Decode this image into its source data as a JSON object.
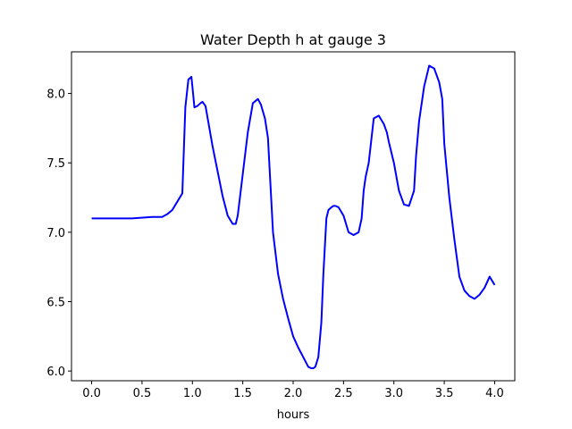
{
  "chart_data": {
    "type": "line",
    "title": "Water Depth h at gauge 3",
    "xlabel": "hours",
    "ylabel": "",
    "xlim": [
      -0.2,
      4.2
    ],
    "ylim": [
      5.93,
      8.3
    ],
    "xticks": [
      0.0,
      0.5,
      1.0,
      1.5,
      2.0,
      2.5,
      3.0,
      3.5,
      4.0
    ],
    "xtick_labels": [
      "0.0",
      "0.5",
      "1.0",
      "1.5",
      "2.0",
      "2.5",
      "3.0",
      "3.5",
      "4.0"
    ],
    "yticks": [
      6.0,
      6.5,
      7.0,
      7.5,
      8.0
    ],
    "ytick_labels": [
      "6.0",
      "6.5",
      "7.0",
      "7.5",
      "8.0"
    ],
    "grid": false,
    "series": [
      {
        "color": "#0000ff",
        "x": [
          0.0,
          0.2,
          0.4,
          0.6,
          0.7,
          0.75,
          0.8,
          0.85,
          0.9,
          0.93,
          0.96,
          0.99,
          1.0,
          1.02,
          1.05,
          1.08,
          1.1,
          1.13,
          1.2,
          1.25,
          1.3,
          1.35,
          1.4,
          1.43,
          1.45,
          1.5,
          1.55,
          1.6,
          1.65,
          1.68,
          1.72,
          1.75,
          1.8,
          1.85,
          1.9,
          1.95,
          2.0,
          2.05,
          2.1,
          2.15,
          2.18,
          2.2,
          2.22,
          2.25,
          2.28,
          2.3,
          2.33,
          2.35,
          2.38,
          2.4,
          2.42,
          2.45,
          2.5,
          2.55,
          2.6,
          2.65,
          2.68,
          2.7,
          2.72,
          2.75,
          2.8,
          2.85,
          2.9,
          2.93,
          2.95,
          3.0,
          3.05,
          3.1,
          3.15,
          3.2,
          3.22,
          3.25,
          3.3,
          3.35,
          3.4,
          3.45,
          3.48,
          3.5,
          3.55,
          3.6,
          3.65,
          3.7,
          3.75,
          3.8,
          3.85,
          3.9,
          3.95,
          4.0
        ],
        "y": [
          7.1,
          7.1,
          7.1,
          7.11,
          7.11,
          7.13,
          7.16,
          7.22,
          7.28,
          7.9,
          8.1,
          8.12,
          8.05,
          7.9,
          7.91,
          7.93,
          7.94,
          7.91,
          7.62,
          7.44,
          7.26,
          7.12,
          7.06,
          7.06,
          7.12,
          7.42,
          7.72,
          7.93,
          7.96,
          7.92,
          7.82,
          7.68,
          7.0,
          6.7,
          6.52,
          6.38,
          6.25,
          6.17,
          6.1,
          6.03,
          6.02,
          6.02,
          6.03,
          6.1,
          6.35,
          6.7,
          7.1,
          7.16,
          7.18,
          7.19,
          7.19,
          7.18,
          7.12,
          7.0,
          6.98,
          7.0,
          7.1,
          7.3,
          7.4,
          7.5,
          7.82,
          7.84,
          7.78,
          7.72,
          7.65,
          7.5,
          7.3,
          7.2,
          7.19,
          7.3,
          7.55,
          7.8,
          8.05,
          8.2,
          8.18,
          8.08,
          7.96,
          7.64,
          7.25,
          6.95,
          6.68,
          6.58,
          6.54,
          6.52,
          6.55,
          6.6,
          6.68,
          6.62
        ]
      }
    ]
  }
}
